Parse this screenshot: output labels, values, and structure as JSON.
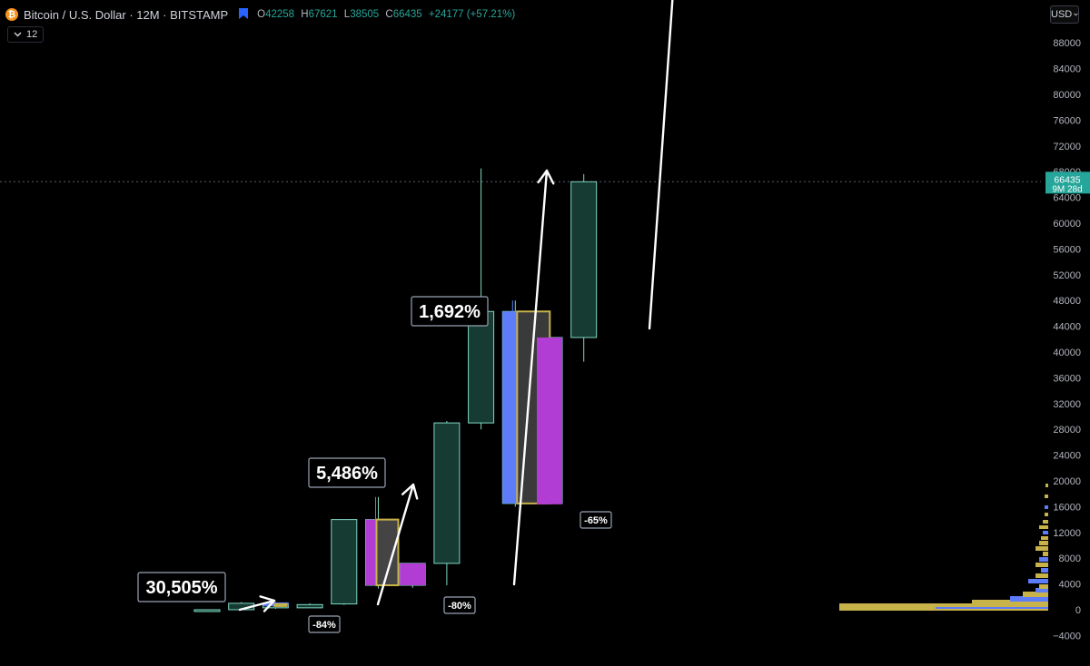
{
  "header": {
    "title": "Bitcoin / U.S. Dollar · 12M · BITSTAMP",
    "ohlc": [
      {
        "k": "O",
        "v": "42258"
      },
      {
        "k": "H",
        "v": "67621"
      },
      {
        "k": "L",
        "v": "38505"
      },
      {
        "k": "C",
        "v": "66435"
      }
    ],
    "change": "+24177 (+57.21%)",
    "interval_label": "12",
    "currency": "USD",
    "icons": [
      "bitcoin-logo-icon",
      "flag-icon",
      "chevron-down-icon"
    ]
  },
  "price_label": {
    "value": "66435",
    "countdown": "9M 28d"
  },
  "colors": {
    "background": "#000000",
    "candle_body": "#163b33",
    "candle_border": "#7fd8c2",
    "arrow": "#ffffff",
    "bear_blue": "#5c7cfa",
    "bear_purple": "#b13dd4",
    "bear_gold": "#c8b24a",
    "price_tag": "#26a69a"
  },
  "chart_data": {
    "type": "candlestick",
    "symbol": "Bitcoin / U.S. Dollar",
    "interval": "12M",
    "exchange": "BITSTAMP",
    "y_ticks": [
      88000,
      84000,
      80000,
      76000,
      72000,
      68000,
      64000,
      60000,
      56000,
      52000,
      48000,
      44000,
      40000,
      36000,
      32000,
      28000,
      24000,
      20000,
      16000,
      12000,
      8000,
      4000,
      0,
      -4000
    ],
    "ylim": [
      -6000,
      93000
    ],
    "y_scale": "linear",
    "candles": [
      {
        "o": 0,
        "h": 20,
        "l": 0,
        "c": 5
      },
      {
        "o": 5,
        "h": 1200,
        "l": 0,
        "c": 1000
      },
      {
        "o": 1000,
        "h": 1200,
        "l": 150,
        "c": 300
      },
      {
        "o": 300,
        "h": 1000,
        "l": 280,
        "c": 800
      },
      {
        "o": 900,
        "h": 14000,
        "l": 750,
        "c": 14000
      },
      {
        "o": 14000,
        "h": 17500,
        "l": 3300,
        "c": 3800
      },
      {
        "o": 3800,
        "h": 7000,
        "l": 3400,
        "c": 7200
      },
      {
        "o": 7200,
        "h": 29300,
        "l": 3800,
        "c": 29000
      },
      {
        "o": 29000,
        "h": 68500,
        "l": 28000,
        "c": 46300
      },
      {
        "o": 46300,
        "h": 48000,
        "l": 16000,
        "c": 16500
      },
      {
        "o": 16500,
        "h": 44000,
        "l": 16500,
        "c": 42258
      },
      {
        "o": 42258,
        "h": 67621,
        "l": 38505,
        "c": 66435
      }
    ],
    "last_price": 66435,
    "annotations": [
      {
        "text": "30,505%",
        "kind": "gain"
      },
      {
        "text": "5,486%",
        "kind": "gain"
      },
      {
        "text": "1,692%",
        "kind": "gain"
      },
      {
        "text": "-84%",
        "kind": "drawdown"
      },
      {
        "text": "-80%",
        "kind": "drawdown"
      },
      {
        "text": "-65%",
        "kind": "drawdown"
      }
    ],
    "grid": false,
    "legend": "none",
    "volume_profile": "bottom-right"
  }
}
